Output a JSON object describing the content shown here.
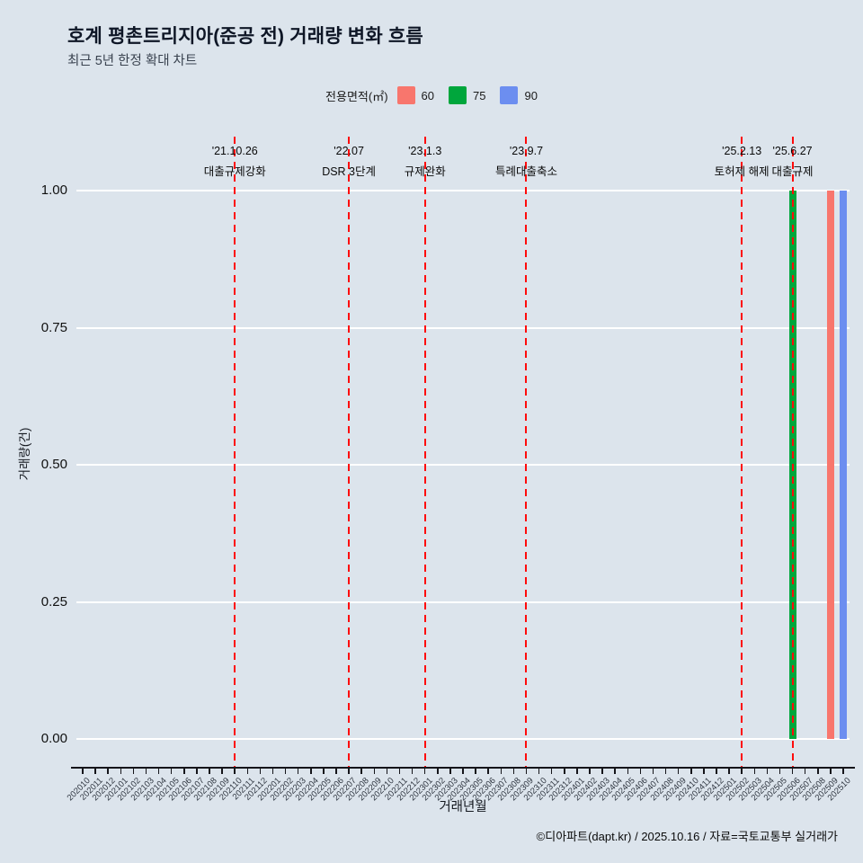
{
  "header": {
    "title": "호계 평촌트리지아(준공 전) 거래량 변화 흐름",
    "subtitle": "최근 5년 한정 확대 차트"
  },
  "legend": {
    "title": "전용면적(㎡)",
    "items": [
      {
        "label": "60",
        "color": "#F8766D"
      },
      {
        "label": "75",
        "color": "#00A63C"
      },
      {
        "label": "90",
        "color": "#6C8EF0"
      }
    ]
  },
  "axes": {
    "y_title": "거래량(건)",
    "x_title": "거래년월"
  },
  "footer": {
    "credit": "©디아파트(dapt.kr) / 2025.10.16 / 자료=국토교통부 실거래가"
  },
  "chart_data": {
    "type": "bar",
    "title": "호계 평촌트리지아(준공 전) 거래량 변화 흐름",
    "subtitle": "최근 5년 한정 확대 차트",
    "xlabel": "거래년월",
    "ylabel": "거래량(건)",
    "ylim": [
      0,
      1
    ],
    "grid": "horizontal-white-major",
    "legend_position": "top-center",
    "background_color": "#DCE4EC",
    "annotation_line_color": "#FF0000",
    "y_tick_values": [
      0,
      0.25,
      0.5,
      0.75,
      1
    ],
    "y_tick_labels": [
      "0.00",
      "0.25",
      "0.50",
      "0.75",
      "1.00"
    ],
    "categories": [
      "202010",
      "202011",
      "202012",
      "202101",
      "202102",
      "202103",
      "202104",
      "202105",
      "202106",
      "202107",
      "202108",
      "202109",
      "202110",
      "202111",
      "202112",
      "202201",
      "202202",
      "202203",
      "202204",
      "202205",
      "202206",
      "202207",
      "202208",
      "202209",
      "202210",
      "202211",
      "202212",
      "202301",
      "202302",
      "202303",
      "202304",
      "202305",
      "202306",
      "202307",
      "202308",
      "202309",
      "202310",
      "202311",
      "202312",
      "202401",
      "202402",
      "202403",
      "202404",
      "202405",
      "202406",
      "202407",
      "202408",
      "202409",
      "202410",
      "202411",
      "202412",
      "202501",
      "202502",
      "202503",
      "202504",
      "202505",
      "202506",
      "202507",
      "202508",
      "202509",
      "202510"
    ],
    "series": [
      {
        "name": "60",
        "color": "#F8766D",
        "points": [
          {
            "month": "202509",
            "value": 1
          }
        ]
      },
      {
        "name": "75",
        "color": "#00A63C",
        "points": [
          {
            "month": "202506",
            "value": 1
          }
        ]
      },
      {
        "name": "90",
        "color": "#6C8EF0",
        "points": [
          {
            "month": "202510",
            "value": 1
          }
        ]
      }
    ],
    "annotations": [
      {
        "date": "'21.10.26",
        "label": "대출규제강화",
        "month": "202110"
      },
      {
        "date": "'22.07",
        "label": "DSR 3단계",
        "month": "202207"
      },
      {
        "date": "'23.1.3",
        "label": "규제완화",
        "month": "202301"
      },
      {
        "date": "'23.9.7",
        "label": "특례대출축소",
        "month": "202309"
      },
      {
        "date": "'25.2.13",
        "label": "토허제 해제",
        "month": "202502"
      },
      {
        "date": "'25.6.27",
        "label": "대출규제",
        "month": "202506"
      }
    ]
  }
}
